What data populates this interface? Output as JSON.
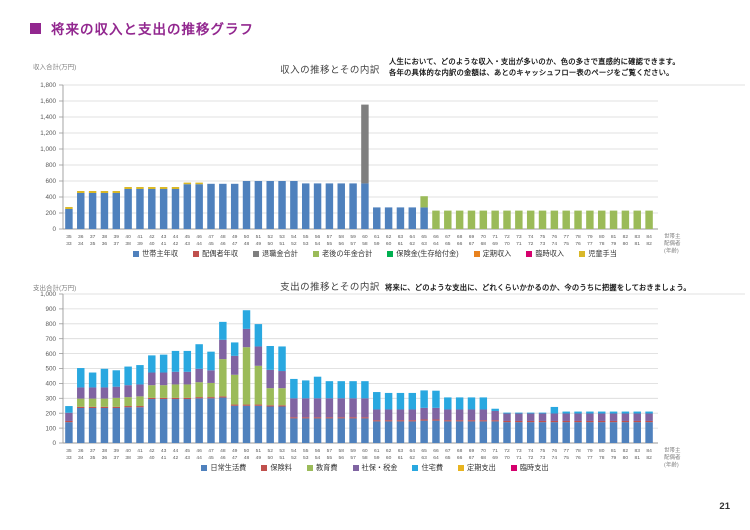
{
  "page": {
    "title": "将来の収入と支出の推移グラフ",
    "page_number": "21",
    "accent_color": "#92278F"
  },
  "chart_data": [
    {
      "type": "bar",
      "stacked": true,
      "title": "収入の推移とその内訳",
      "ylabel": "収入合計(万円)",
      "ylim": [
        0,
        1800
      ],
      "ytick_step": 200,
      "grid": true,
      "legend_position": "bottom",
      "note_lines": [
        "人生において、どのような収入・支出が多いのか、色の多さで直感的に確認できます。",
        "各年の具体的な内訳の金額は、あとのキャッシュフロー表のページをご覧ください。"
      ],
      "right_label_lines": [
        "世帯主",
        "配偶者",
        "(年齢)"
      ],
      "categories": [
        35,
        36,
        37,
        38,
        39,
        40,
        41,
        42,
        43,
        44,
        45,
        46,
        47,
        48,
        49,
        50,
        51,
        52,
        53,
        54,
        55,
        56,
        57,
        58,
        59,
        60,
        61,
        62,
        63,
        64,
        65,
        66,
        67,
        68,
        69,
        70,
        71,
        72,
        73,
        74,
        75,
        76,
        77,
        78,
        79,
        80,
        81,
        82,
        83,
        84
      ],
      "categories2": [
        33,
        34,
        35,
        36,
        37,
        38,
        39,
        40,
        41,
        42,
        43,
        44,
        45,
        46,
        47,
        48,
        49,
        50,
        51,
        52,
        53,
        54,
        55,
        56,
        57,
        58,
        59,
        60,
        61,
        62,
        63,
        64,
        65,
        66,
        67,
        68,
        69,
        70,
        71,
        72,
        73,
        74,
        75,
        76,
        77,
        78,
        79,
        80,
        81,
        82
      ],
      "series": [
        {
          "name": "世帯主年収",
          "color": "#4F81BD",
          "values": [
            250,
            450,
            450,
            450,
            450,
            500,
            500,
            500,
            500,
            500,
            560,
            560,
            565,
            565,
            565,
            600,
            600,
            600,
            600,
            600,
            570,
            570,
            570,
            570,
            570,
            570,
            270,
            270,
            270,
            270,
            270,
            0,
            0,
            0,
            0,
            0,
            0,
            0,
            0,
            0,
            0,
            0,
            0,
            0,
            0,
            0,
            0,
            0,
            0,
            0
          ]
        },
        {
          "name": "配偶者年収",
          "color": "#C0504D",
          "values": [
            0,
            0,
            0,
            0,
            0,
            0,
            0,
            0,
            0,
            0,
            0,
            0,
            0,
            0,
            0,
            0,
            0,
            0,
            0,
            0,
            0,
            0,
            0,
            0,
            0,
            0,
            0,
            0,
            0,
            0,
            0,
            0,
            0,
            0,
            0,
            0,
            0,
            0,
            0,
            0,
            0,
            0,
            0,
            0,
            0,
            0,
            0,
            0,
            0,
            0
          ]
        },
        {
          "name": "退職金合計",
          "color": "#7F7F7F",
          "values": [
            0,
            0,
            0,
            0,
            0,
            0,
            0,
            0,
            0,
            0,
            0,
            0,
            0,
            0,
            0,
            0,
            0,
            0,
            0,
            0,
            0,
            0,
            0,
            0,
            0,
            985,
            0,
            0,
            0,
            0,
            0,
            0,
            0,
            0,
            0,
            0,
            0,
            0,
            0,
            0,
            0,
            0,
            0,
            0,
            0,
            0,
            0,
            0,
            0,
            0
          ]
        },
        {
          "name": "老後の年金合計",
          "color": "#9BBB59",
          "values": [
            0,
            0,
            0,
            0,
            0,
            0,
            0,
            0,
            0,
            0,
            0,
            0,
            0,
            0,
            0,
            0,
            0,
            0,
            0,
            0,
            0,
            0,
            0,
            0,
            0,
            0,
            0,
            0,
            0,
            0,
            140,
            230,
            230,
            230,
            230,
            230,
            230,
            230,
            230,
            230,
            230,
            230,
            230,
            230,
            230,
            230,
            230,
            230,
            230,
            230
          ]
        },
        {
          "name": "保険金(生存給付金)",
          "color": "#00B050",
          "values": [
            0,
            0,
            0,
            0,
            0,
            0,
            0,
            0,
            0,
            0,
            0,
            0,
            0,
            0,
            0,
            0,
            0,
            0,
            0,
            0,
            0,
            0,
            0,
            0,
            0,
            0,
            0,
            0,
            0,
            0,
            0,
            0,
            0,
            0,
            0,
            0,
            0,
            0,
            0,
            0,
            0,
            0,
            0,
            0,
            0,
            0,
            0,
            0,
            0,
            0
          ]
        },
        {
          "name": "定期収入",
          "color": "#E8821E",
          "values": [
            0,
            0,
            0,
            0,
            0,
            0,
            0,
            0,
            0,
            0,
            0,
            0,
            0,
            0,
            0,
            0,
            0,
            0,
            0,
            0,
            0,
            0,
            0,
            0,
            0,
            0,
            0,
            0,
            0,
            0,
            0,
            0,
            0,
            0,
            0,
            0,
            0,
            0,
            0,
            0,
            0,
            0,
            0,
            0,
            0,
            0,
            0,
            0,
            0,
            0
          ]
        },
        {
          "name": "臨時収入",
          "color": "#D5006D",
          "values": [
            0,
            0,
            0,
            0,
            0,
            0,
            0,
            0,
            0,
            0,
            0,
            0,
            0,
            0,
            0,
            0,
            0,
            0,
            0,
            0,
            0,
            0,
            0,
            0,
            0,
            0,
            0,
            0,
            0,
            0,
            0,
            0,
            0,
            0,
            0,
            0,
            0,
            0,
            0,
            0,
            0,
            0,
            0,
            0,
            0,
            0,
            0,
            0,
            0,
            0
          ]
        },
        {
          "name": "児童手当",
          "color": "#D9B829",
          "values": [
            25,
            25,
            25,
            25,
            25,
            25,
            25,
            25,
            25,
            25,
            20,
            20,
            0,
            0,
            0,
            0,
            0,
            0,
            0,
            0,
            0,
            0,
            0,
            0,
            0,
            0,
            0,
            0,
            0,
            0,
            0,
            0,
            0,
            0,
            0,
            0,
            0,
            0,
            0,
            0,
            0,
            0,
            0,
            0,
            0,
            0,
            0,
            0,
            0,
            0
          ]
        }
      ]
    },
    {
      "type": "bar",
      "stacked": true,
      "title": "支出の推移とその内訳",
      "ylabel": "支出合計(万円)",
      "ylim": [
        0,
        1000
      ],
      "ytick_step": 100,
      "grid": true,
      "legend_position": "bottom",
      "note_lines": [
        "将来に、どのような支出に、どれくらいかかるのか、今のうちに把握をしておきましょう。"
      ],
      "right_label_lines": [
        "世帯主",
        "配偶者",
        "(年齢)"
      ],
      "categories": [
        35,
        36,
        37,
        38,
        39,
        40,
        41,
        42,
        43,
        44,
        45,
        46,
        47,
        48,
        49,
        50,
        51,
        52,
        53,
        54,
        55,
        56,
        57,
        58,
        59,
        60,
        61,
        62,
        63,
        64,
        65,
        66,
        67,
        68,
        69,
        70,
        71,
        72,
        73,
        74,
        75,
        76,
        77,
        78,
        79,
        80,
        81,
        82,
        83,
        84
      ],
      "categories2": [
        33,
        34,
        35,
        36,
        37,
        38,
        39,
        40,
        41,
        42,
        43,
        44,
        45,
        46,
        47,
        48,
        49,
        50,
        51,
        52,
        53,
        54,
        55,
        56,
        57,
        58,
        59,
        60,
        61,
        62,
        63,
        64,
        65,
        66,
        67,
        68,
        69,
        70,
        71,
        72,
        73,
        74,
        75,
        76,
        77,
        78,
        79,
        80,
        81,
        82
      ],
      "series": [
        {
          "name": "日常生活費",
          "color": "#4F81BD",
          "values": [
            140,
            235,
            235,
            235,
            235,
            240,
            240,
            295,
            295,
            295,
            295,
            300,
            300,
            305,
            250,
            250,
            250,
            245,
            245,
            165,
            165,
            165,
            165,
            165,
            165,
            165,
            145,
            145,
            145,
            145,
            150,
            150,
            145,
            145,
            145,
            145,
            145,
            140,
            140,
            140,
            140,
            140,
            140,
            140,
            140,
            140,
            140,
            140,
            140,
            140
          ]
        },
        {
          "name": "保険料",
          "color": "#C0504D",
          "values": [
            8,
            8,
            8,
            8,
            8,
            8,
            8,
            8,
            8,
            8,
            8,
            8,
            8,
            8,
            8,
            8,
            8,
            8,
            8,
            8,
            8,
            8,
            8,
            8,
            8,
            8,
            8,
            8,
            8,
            8,
            8,
            8,
            8,
            8,
            8,
            8,
            8,
            8,
            8,
            8,
            8,
            8,
            8,
            8,
            8,
            8,
            8,
            8,
            8,
            8
          ]
        },
        {
          "name": "教育費",
          "color": "#9BBB59",
          "values": [
            0,
            55,
            55,
            55,
            60,
            60,
            65,
            85,
            85,
            90,
            90,
            100,
            95,
            250,
            200,
            385,
            260,
            115,
            115,
            0,
            0,
            0,
            0,
            0,
            0,
            0,
            0,
            0,
            0,
            0,
            0,
            0,
            0,
            0,
            0,
            0,
            0,
            0,
            0,
            0,
            0,
            0,
            0,
            0,
            0,
            0,
            0,
            0,
            0,
            0
          ]
        },
        {
          "name": "社保・税金",
          "color": "#8064A2",
          "values": [
            55,
            75,
            75,
            75,
            75,
            80,
            80,
            85,
            85,
            85,
            85,
            90,
            85,
            130,
            127,
            123,
            130,
            123,
            115,
            127,
            127,
            127,
            127,
            127,
            127,
            127,
            72,
            72,
            72,
            72,
            78,
            78,
            72,
            72,
            72,
            72,
            62,
            50,
            50,
            50,
            50,
            50,
            50,
            50,
            50,
            50,
            50,
            50,
            50,
            50
          ]
        },
        {
          "name": "住宅費",
          "color": "#29A8E0",
          "values": [
            45,
            130,
            100,
            125,
            110,
            125,
            130,
            115,
            120,
            140,
            140,
            165,
            125,
            120,
            90,
            125,
            150,
            160,
            165,
            130,
            120,
            145,
            115,
            115,
            115,
            115,
            117,
            111,
            111,
            111,
            117,
            115,
            81,
            81,
            81,
            81,
            15,
            6,
            6,
            6,
            6,
            44,
            13,
            13,
            13,
            13,
            13,
            13,
            13,
            13
          ]
        },
        {
          "name": "定期支出",
          "color": "#E8B420",
          "values": [
            0,
            0,
            0,
            0,
            0,
            0,
            0,
            0,
            0,
            0,
            0,
            0,
            0,
            0,
            0,
            0,
            0,
            0,
            0,
            0,
            0,
            0,
            0,
            0,
            0,
            0,
            0,
            0,
            0,
            0,
            0,
            0,
            0,
            0,
            0,
            0,
            0,
            0,
            0,
            0,
            0,
            0,
            0,
            0,
            0,
            0,
            0,
            0,
            0,
            0
          ]
        },
        {
          "name": "臨時支出",
          "color": "#D5006D",
          "values": [
            0,
            0,
            0,
            0,
            0,
            0,
            0,
            0,
            0,
            0,
            0,
            0,
            0,
            0,
            0,
            0,
            0,
            0,
            0,
            0,
            0,
            0,
            0,
            0,
            0,
            0,
            0,
            0,
            0,
            0,
            0,
            0,
            0,
            0,
            0,
            0,
            0,
            0,
            0,
            0,
            0,
            0,
            0,
            0,
            0,
            0,
            0,
            0,
            0,
            0
          ]
        }
      ]
    }
  ]
}
